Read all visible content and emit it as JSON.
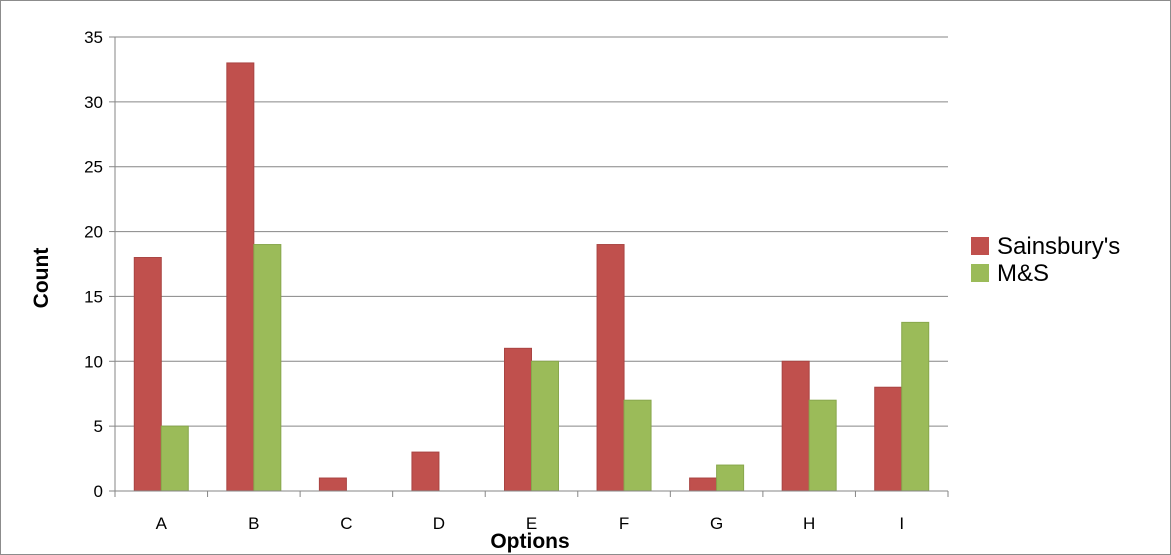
{
  "chart_data": {
    "type": "bar",
    "categories": [
      "A",
      "B",
      "C",
      "D",
      "E",
      "F",
      "G",
      "H",
      "I"
    ],
    "series": [
      {
        "name": "Sainsbury's",
        "color": "#c0504d",
        "values": [
          18,
          33,
          1,
          3,
          11,
          19,
          1,
          10,
          8
        ]
      },
      {
        "name": "M&S",
        "color": "#9bbb59",
        "values": [
          5,
          19,
          0,
          0,
          10,
          7,
          2,
          7,
          13
        ]
      }
    ],
    "title": "",
    "xlabel": "Options",
    "ylabel": "Count",
    "ylim": [
      0,
      35
    ],
    "yticks": [
      "0",
      "5",
      "10",
      "15",
      "20",
      "25",
      "30",
      "35"
    ],
    "grid": true,
    "legend_position": "right"
  }
}
